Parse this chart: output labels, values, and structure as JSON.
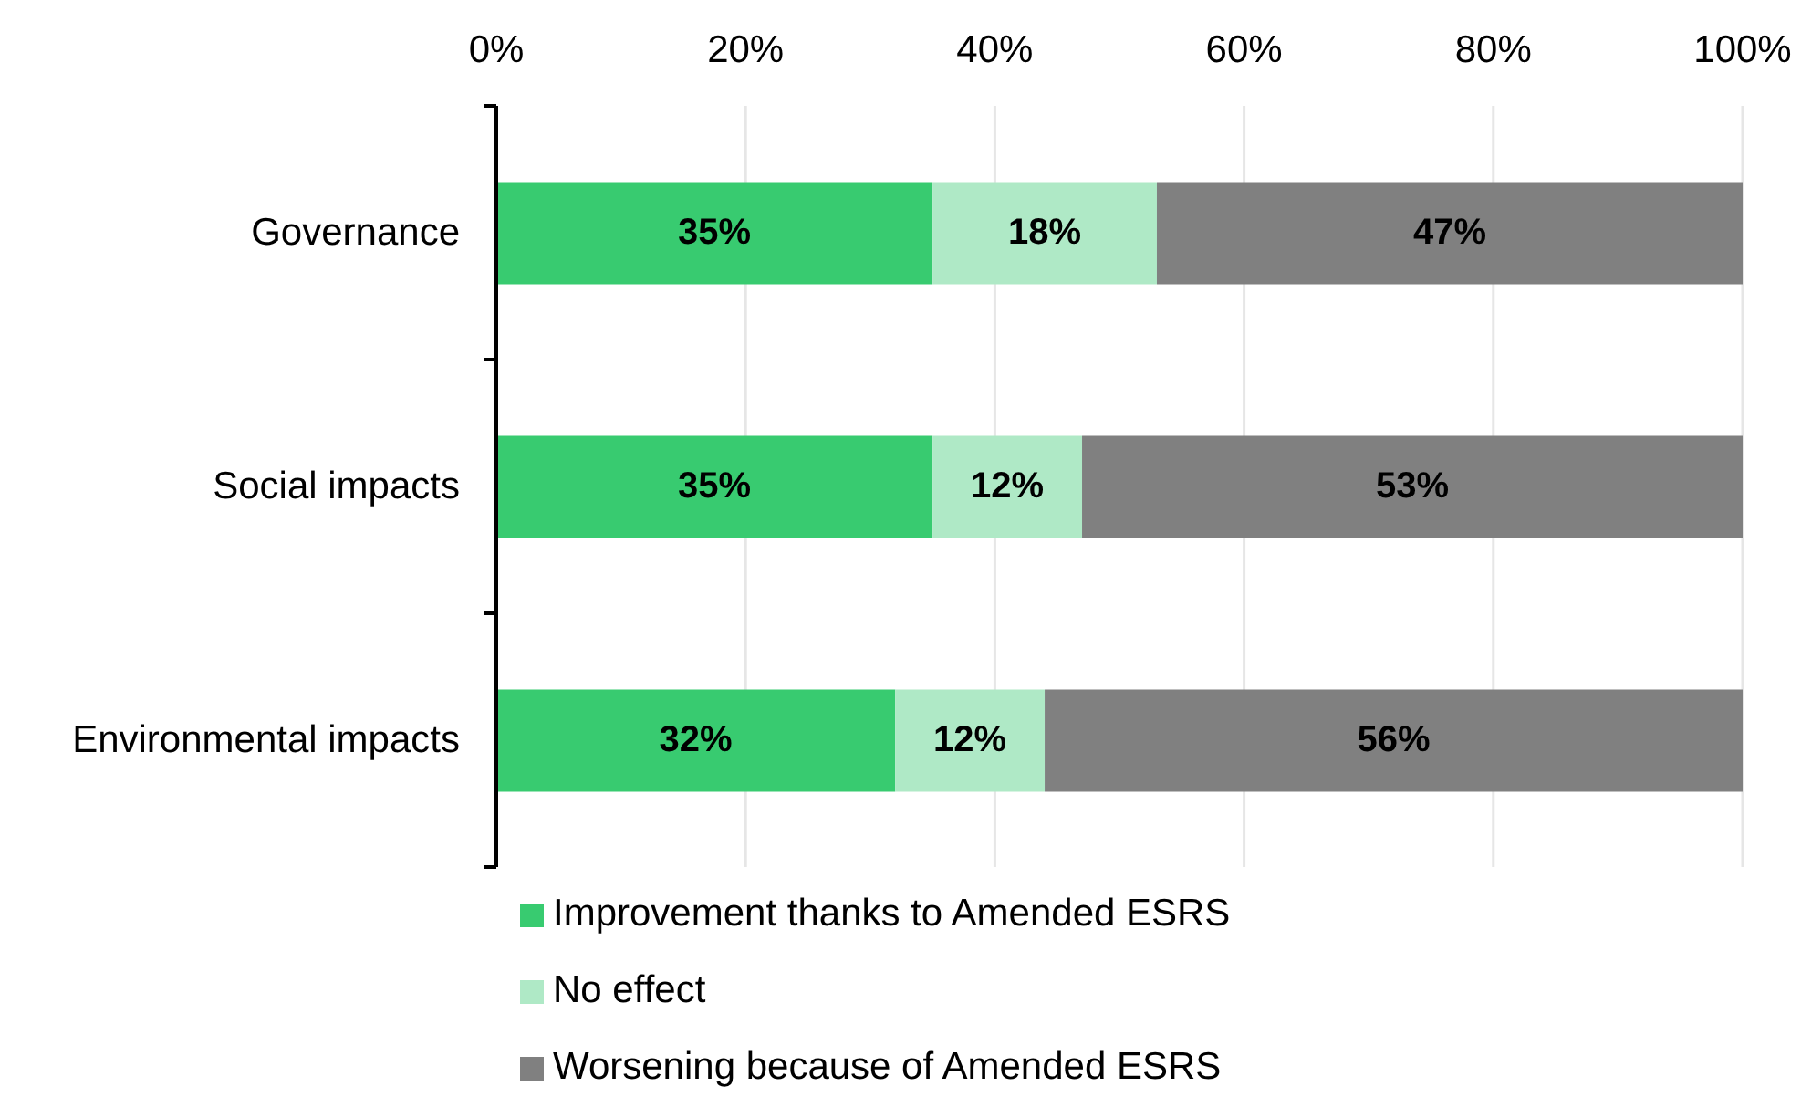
{
  "chart_data": {
    "type": "bar",
    "orientation": "horizontal",
    "stacked": true,
    "categories": [
      "Governance",
      "Social impacts",
      "Environmental impacts"
    ],
    "series": [
      {
        "name": "Improvement thanks to Amended ESRS",
        "color": "#38cb70",
        "values": [
          35,
          35,
          32
        ],
        "value_labels": [
          "35%",
          "35%",
          "32%"
        ]
      },
      {
        "name": "No effect",
        "color": "#afe9c6",
        "values": [
          18,
          12,
          12
        ],
        "value_labels": [
          "18%",
          "12%",
          "12%"
        ]
      },
      {
        "name": "Worsening because of Amended ESRS",
        "color": "#808080",
        "values": [
          47,
          53,
          56
        ],
        "value_labels": [
          "47%",
          "53%",
          "56%"
        ]
      }
    ],
    "xlim": [
      0,
      100
    ],
    "xticks": [
      {
        "value": 0,
        "label": "0%"
      },
      {
        "value": 20,
        "label": "20%"
      },
      {
        "value": 40,
        "label": "40%"
      },
      {
        "value": 60,
        "label": "60%"
      },
      {
        "value": 80,
        "label": "80%"
      },
      {
        "value": 100,
        "label": "100%"
      }
    ],
    "grid": "x",
    "legend": "bottom"
  }
}
